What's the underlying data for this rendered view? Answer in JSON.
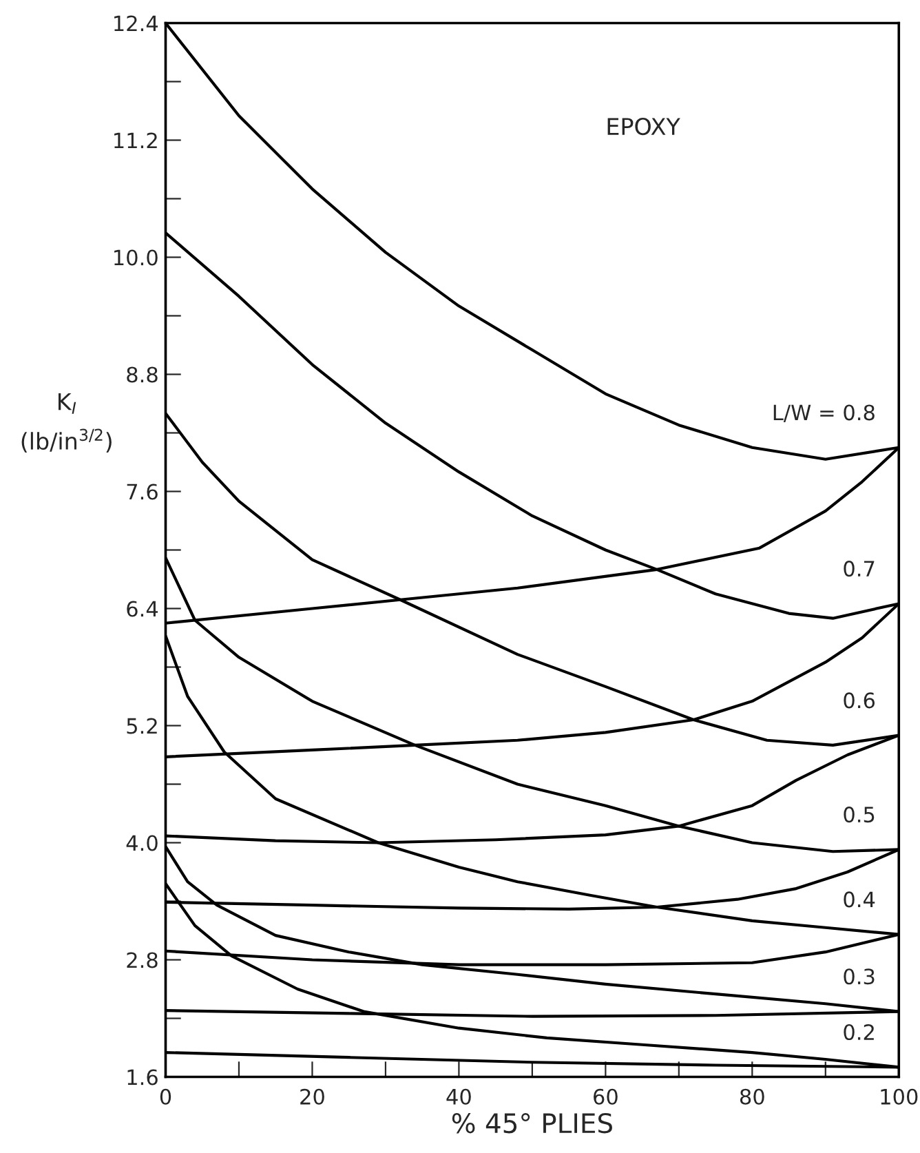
{
  "chart_data": {
    "type": "line",
    "xlabel": "% 45° PLIES",
    "ylabel": "K$_{I}$\n(lb/in$^{3/2}$)",
    "xlim": [
      0,
      100
    ],
    "xticks": [
      0,
      {
        "value": 10,
        "label": null
      },
      20,
      {
        "value": 30,
        "label": null
      },
      40,
      {
        "value": 50,
        "label": null
      },
      60,
      {
        "value": 70,
        "label": null
      },
      80,
      {
        "value": 90,
        "label": null
      },
      100
    ],
    "ylim": [
      1.6,
      12.4
    ],
    "yticks": [
      1.6,
      {
        "value": 2.2,
        "label": null
      },
      2.8,
      {
        "value": 3.4,
        "label": null
      },
      {
        "value": 4,
        "label": "4.0"
      },
      {
        "value": 4.6,
        "label": null
      },
      5.2,
      {
        "value": 5.8,
        "label": null
      },
      6.4,
      {
        "value": 7,
        "label": null
      },
      7.6,
      {
        "value": 8.2,
        "label": null
      },
      8.8,
      {
        "value": 9.4,
        "label": null
      },
      {
        "value": 10,
        "label": "10.0"
      },
      {
        "value": 10.6,
        "label": null
      },
      11.2,
      {
        "value": 11.8,
        "label": null
      },
      12.4
    ],
    "grid": false,
    "legend": false,
    "marker": "none",
    "line_style": "solid",
    "series": [
      {
        "name": "L/W = 0.8",
        "color": "#000000",
        "x": [
          0,
          10,
          20,
          30,
          40,
          50,
          60,
          70,
          80,
          90,
          100
        ],
        "values": [
          12.4,
          11.45,
          10.7,
          10.05,
          9.5,
          9.05,
          8.6,
          8.28,
          8.05,
          7.93,
          8.05
        ]
      },
      {
        "color": "#000000",
        "x": [
          0,
          20,
          32,
          48,
          67,
          81,
          90,
          95,
          100
        ],
        "values": [
          6.25,
          6.4,
          6.49,
          6.61,
          6.8,
          7.02,
          7.4,
          7.7,
          8.05
        ]
      },
      {
        "name": "0.7",
        "color": "#000000",
        "x": [
          0,
          10,
          20,
          30,
          40,
          50,
          60,
          67,
          75,
          85,
          91,
          100
        ],
        "values": [
          10.25,
          9.6,
          8.9,
          8.3,
          7.8,
          7.35,
          7.0,
          6.8,
          6.55,
          6.35,
          6.3,
          6.45
        ]
      },
      {
        "color": "#000000",
        "x": [
          0,
          20,
          34,
          48,
          60,
          72,
          80,
          90,
          95,
          100
        ],
        "values": [
          4.88,
          4.95,
          5.0,
          5.05,
          5.13,
          5.26,
          5.45,
          5.85,
          6.1,
          6.45
        ]
      },
      {
        "name": "0.6",
        "color": "#000000",
        "x": [
          0,
          5,
          10,
          20,
          32,
          48,
          60,
          72,
          82,
          91,
          100
        ],
        "values": [
          8.4,
          7.9,
          7.5,
          6.9,
          6.49,
          5.93,
          5.6,
          5.26,
          5.05,
          5.0,
          5.1
        ]
      },
      {
        "color": "#000000",
        "x": [
          0,
          15,
          29,
          45,
          60,
          70,
          80,
          86,
          93,
          100
        ],
        "values": [
          4.07,
          4.02,
          4.0,
          4.03,
          4.08,
          4.17,
          4.38,
          4.64,
          4.9,
          5.1
        ]
      },
      {
        "name": "0.5",
        "color": "#000000",
        "x": [
          0,
          4,
          10,
          20,
          34,
          48,
          60,
          70,
          80,
          91,
          100
        ],
        "values": [
          6.92,
          6.28,
          5.9,
          5.45,
          5.0,
          4.6,
          4.38,
          4.17,
          4.0,
          3.91,
          3.93
        ]
      },
      {
        "color": "#000000",
        "x": [
          0,
          20,
          40,
          55,
          67,
          78,
          86,
          93,
          100
        ],
        "values": [
          3.39,
          3.36,
          3.33,
          3.32,
          3.34,
          3.42,
          3.53,
          3.7,
          3.93
        ]
      },
      {
        "name": "0.4",
        "color": "#000000",
        "x": [
          0,
          3,
          8,
          15,
          29,
          40,
          48,
          58,
          67,
          80,
          90,
          100
        ],
        "values": [
          6.12,
          5.5,
          4.93,
          4.45,
          4.0,
          3.75,
          3.6,
          3.46,
          3.34,
          3.2,
          3.13,
          3.06
        ]
      },
      {
        "color": "#000000",
        "x": [
          0,
          20,
          40,
          60,
          80,
          90,
          100
        ],
        "values": [
          2.89,
          2.8,
          2.75,
          2.75,
          2.77,
          2.88,
          3.06
        ]
      },
      {
        "name": "0.3",
        "color": "#000000",
        "x": [
          0,
          3,
          7,
          15,
          25,
          35,
          48,
          60,
          75,
          90,
          100
        ],
        "values": [
          3.96,
          3.6,
          3.36,
          3.05,
          2.88,
          2.75,
          2.65,
          2.55,
          2.45,
          2.35,
          2.27
        ]
      },
      {
        "color": "#000000",
        "x": [
          0,
          25,
          50,
          75,
          100
        ],
        "values": [
          2.28,
          2.25,
          2.22,
          2.23,
          2.27
        ]
      },
      {
        "name": "0.2",
        "color": "#000000",
        "x": [
          0,
          4,
          9,
          18,
          27,
          40,
          52,
          65,
          80,
          90,
          100
        ],
        "values": [
          3.58,
          3.15,
          2.84,
          2.5,
          2.27,
          2.1,
          2.0,
          1.93,
          1.85,
          1.78,
          1.7
        ]
      },
      {
        "color": "#000000",
        "x": [
          0,
          25,
          50,
          75,
          100
        ],
        "values": [
          1.85,
          1.8,
          1.75,
          1.72,
          1.7
        ]
      }
    ],
    "annotations": [
      "EPOXY"
    ]
  }
}
